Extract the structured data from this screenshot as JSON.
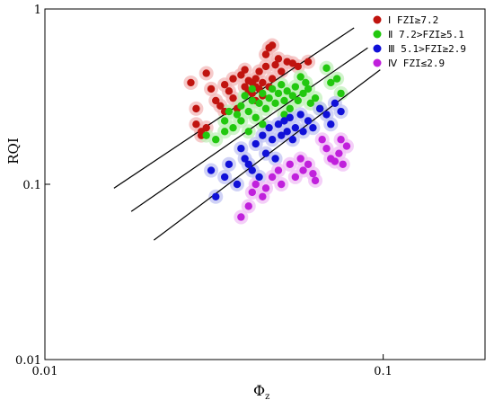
{
  "chart_data": {
    "type": "scatter",
    "x_scale": "log",
    "y_scale": "log",
    "xlim": [
      0.01,
      0.2
    ],
    "ylim": [
      0.01,
      1
    ],
    "xlabel": "Φ",
    "xlabel_sub": "z",
    "ylabel": "RQI",
    "x_ticks": [
      {
        "value": 0.01,
        "label": "0.01"
      },
      {
        "value": 0.1,
        "label": "0.1"
      }
    ],
    "y_ticks": [
      {
        "value": 0.01,
        "label": "0.01"
      },
      {
        "value": 0.1,
        "label": "0.1"
      },
      {
        "value": 1,
        "label": "1"
      }
    ],
    "grid": false,
    "legend_position": "top-right",
    "series": [
      {
        "name": "Ⅰ FZI≥7.2",
        "color": "#c0140f",
        "halo": "#f3b8b8",
        "points": [
          [
            0.027,
            0.38
          ],
          [
            0.03,
            0.43
          ],
          [
            0.028,
            0.27
          ],
          [
            0.028,
            0.22
          ],
          [
            0.029,
            0.2
          ],
          [
            0.03,
            0.21
          ],
          [
            0.029,
            0.19
          ],
          [
            0.031,
            0.35
          ],
          [
            0.032,
            0.3
          ],
          [
            0.033,
            0.28
          ],
          [
            0.034,
            0.37
          ],
          [
            0.035,
            0.34
          ],
          [
            0.036,
            0.4
          ],
          [
            0.036,
            0.31
          ],
          [
            0.037,
            0.27
          ],
          [
            0.038,
            0.42
          ],
          [
            0.039,
            0.36
          ],
          [
            0.04,
            0.39
          ],
          [
            0.04,
            0.34
          ],
          [
            0.041,
            0.38
          ],
          [
            0.041,
            0.33
          ],
          [
            0.042,
            0.36
          ],
          [
            0.042,
            0.4
          ],
          [
            0.043,
            0.35
          ],
          [
            0.043,
            0.44
          ],
          [
            0.044,
            0.38
          ],
          [
            0.044,
            0.32
          ],
          [
            0.045,
            0.47
          ],
          [
            0.045,
            0.55
          ],
          [
            0.046,
            0.6
          ],
          [
            0.047,
            0.62
          ],
          [
            0.048,
            0.48
          ],
          [
            0.049,
            0.52
          ],
          [
            0.05,
            0.44
          ],
          [
            0.052,
            0.5
          ],
          [
            0.054,
            0.49
          ],
          [
            0.056,
            0.47
          ],
          [
            0.06,
            0.5
          ],
          [
            0.047,
            0.4
          ],
          [
            0.046,
            0.36
          ],
          [
            0.039,
            0.45
          ],
          [
            0.042,
            0.3
          ],
          [
            0.034,
            0.26
          ]
        ]
      },
      {
        "name": "Ⅱ 7.2>FZI≥5.1",
        "color": "#22c80f",
        "halo": "#c2f0bb",
        "points": [
          [
            0.03,
            0.19
          ],
          [
            0.032,
            0.18
          ],
          [
            0.034,
            0.2
          ],
          [
            0.034,
            0.23
          ],
          [
            0.035,
            0.26
          ],
          [
            0.036,
            0.21
          ],
          [
            0.037,
            0.25
          ],
          [
            0.038,
            0.28
          ],
          [
            0.038,
            0.23
          ],
          [
            0.039,
            0.32
          ],
          [
            0.04,
            0.26
          ],
          [
            0.041,
            0.3
          ],
          [
            0.041,
            0.35
          ],
          [
            0.042,
            0.24
          ],
          [
            0.043,
            0.29
          ],
          [
            0.044,
            0.33
          ],
          [
            0.045,
            0.27
          ],
          [
            0.046,
            0.31
          ],
          [
            0.047,
            0.35
          ],
          [
            0.048,
            0.29
          ],
          [
            0.049,
            0.33
          ],
          [
            0.05,
            0.37
          ],
          [
            0.051,
            0.3
          ],
          [
            0.052,
            0.34
          ],
          [
            0.053,
            0.27
          ],
          [
            0.054,
            0.32
          ],
          [
            0.055,
            0.36
          ],
          [
            0.056,
            0.3
          ],
          [
            0.058,
            0.33
          ],
          [
            0.059,
            0.38
          ],
          [
            0.06,
            0.35
          ],
          [
            0.061,
            0.29
          ],
          [
            0.063,
            0.31
          ],
          [
            0.065,
            0.27
          ],
          [
            0.068,
            0.46
          ],
          [
            0.07,
            0.38
          ],
          [
            0.073,
            0.4
          ],
          [
            0.075,
            0.33
          ],
          [
            0.057,
            0.41
          ],
          [
            0.051,
            0.25
          ],
          [
            0.044,
            0.22
          ],
          [
            0.04,
            0.2
          ]
        ]
      },
      {
        "name": "Ⅲ 5.1>FZI≥2.9",
        "color": "#1010d8",
        "halo": "#c0c3f3",
        "points": [
          [
            0.031,
            0.12
          ],
          [
            0.032,
            0.085
          ],
          [
            0.034,
            0.11
          ],
          [
            0.035,
            0.13
          ],
          [
            0.037,
            0.1
          ],
          [
            0.038,
            0.16
          ],
          [
            0.039,
            0.14
          ],
          [
            0.04,
            0.13
          ],
          [
            0.041,
            0.12
          ],
          [
            0.042,
            0.17
          ],
          [
            0.043,
            0.11
          ],
          [
            0.044,
            0.19
          ],
          [
            0.045,
            0.15
          ],
          [
            0.046,
            0.21
          ],
          [
            0.047,
            0.18
          ],
          [
            0.048,
            0.14
          ],
          [
            0.049,
            0.22
          ],
          [
            0.05,
            0.19
          ],
          [
            0.051,
            0.23
          ],
          [
            0.052,
            0.2
          ],
          [
            0.053,
            0.24
          ],
          [
            0.054,
            0.18
          ],
          [
            0.055,
            0.21
          ],
          [
            0.057,
            0.25
          ],
          [
            0.058,
            0.2
          ],
          [
            0.06,
            0.23
          ],
          [
            0.062,
            0.21
          ],
          [
            0.065,
            0.27
          ],
          [
            0.068,
            0.25
          ],
          [
            0.07,
            0.22
          ],
          [
            0.072,
            0.29
          ],
          [
            0.075,
            0.26
          ]
        ]
      },
      {
        "name": "Ⅳ FZI≤2.9",
        "color": "#c020dc",
        "halo": "#f0bff5",
        "points": [
          [
            0.038,
            0.065
          ],
          [
            0.04,
            0.075
          ],
          [
            0.041,
            0.09
          ],
          [
            0.042,
            0.1
          ],
          [
            0.044,
            0.085
          ],
          [
            0.045,
            0.095
          ],
          [
            0.047,
            0.11
          ],
          [
            0.049,
            0.12
          ],
          [
            0.05,
            0.1
          ],
          [
            0.053,
            0.13
          ],
          [
            0.055,
            0.11
          ],
          [
            0.057,
            0.14
          ],
          [
            0.058,
            0.12
          ],
          [
            0.06,
            0.13
          ],
          [
            0.062,
            0.115
          ],
          [
            0.063,
            0.105
          ],
          [
            0.066,
            0.18
          ],
          [
            0.068,
            0.16
          ],
          [
            0.07,
            0.14
          ],
          [
            0.072,
            0.135
          ],
          [
            0.074,
            0.15
          ],
          [
            0.075,
            0.18
          ],
          [
            0.076,
            0.13
          ],
          [
            0.078,
            0.165
          ]
        ]
      }
    ],
    "boundary_lines": [
      {
        "x": [
          0.016,
          0.082
        ],
        "y": [
          0.095,
          0.78
        ]
      },
      {
        "x": [
          0.018,
          0.09
        ],
        "y": [
          0.07,
          0.6
        ]
      },
      {
        "x": [
          0.021,
          0.098
        ],
        "y": [
          0.048,
          0.45
        ]
      }
    ]
  }
}
